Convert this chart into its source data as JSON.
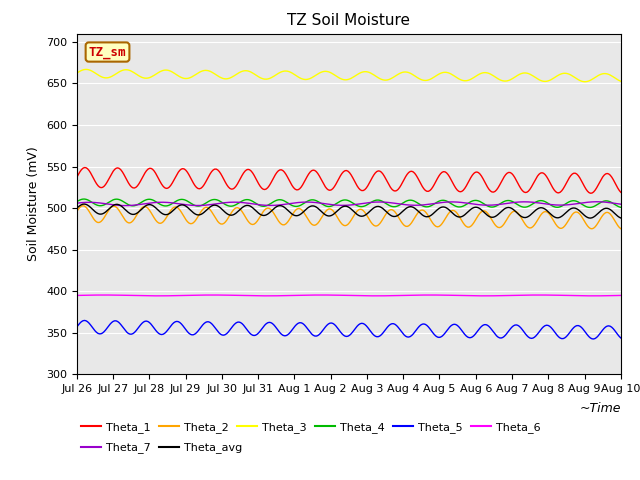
{
  "title": "TZ Soil Moisture",
  "ylabel": "Soil Moisture (mV)",
  "xlabel": "~Time",
  "ylim": [
    300,
    710
  ],
  "bg_color": "#e8e8e8",
  "tz_sm_label": "TZ_sm",
  "xtick_labels": [
    "Jul 26",
    "Jul 27",
    "Jul 28",
    "Jul 29",
    "Jul 30",
    "Jul 31",
    "Aug 1",
    "Aug 2",
    "Aug 3",
    "Aug 4",
    "Aug 5",
    "Aug 6",
    "Aug 7",
    "Aug 8",
    "Aug 9",
    "Aug 10"
  ],
  "series_order": [
    "Theta_1",
    "Theta_2",
    "Theta_3",
    "Theta_4",
    "Theta_5",
    "Theta_6",
    "Theta_7",
    "Theta_avg"
  ],
  "series": {
    "Theta_1": {
      "color": "#ff0000",
      "base": 537,
      "amp": 12,
      "period": 0.9,
      "trend": -0.5,
      "phase": 0.0
    },
    "Theta_2": {
      "color": "#ffa500",
      "base": 493,
      "amp": 10,
      "period": 0.85,
      "trend": -0.55,
      "phase": 0.3
    },
    "Theta_3": {
      "color": "#ffff00",
      "base": 662,
      "amp": 5,
      "period": 1.1,
      "trend": -0.35,
      "phase": 0.1
    },
    "Theta_4": {
      "color": "#00bb00",
      "base": 507,
      "amp": 4,
      "period": 0.9,
      "trend": -0.15,
      "phase": 0.2
    },
    "Theta_5": {
      "color": "#0000ff",
      "base": 357,
      "amp": 8,
      "period": 0.85,
      "trend": -0.45,
      "phase": 0.0
    },
    "Theta_6": {
      "color": "#ff00ff",
      "base": 395,
      "amp": 0.5,
      "period": 3.0,
      "trend": 0.0,
      "phase": 0.0
    },
    "Theta_7": {
      "color": "#9900cc",
      "base": 505,
      "amp": 2,
      "period": 2.0,
      "trend": 0.05,
      "phase": 0.5
    },
    "Theta_avg": {
      "color": "#000000",
      "base": 499,
      "amp": 6,
      "period": 0.9,
      "trend": -0.35,
      "phase": 0.15
    }
  },
  "n_points": 360,
  "title_fontsize": 11,
  "axis_label_fontsize": 9,
  "tick_fontsize": 8,
  "legend_fontsize": 8,
  "legend_row1": [
    "Theta_1",
    "Theta_2",
    "Theta_3",
    "Theta_4",
    "Theta_5",
    "Theta_6"
  ],
  "legend_row2": [
    "Theta_7",
    "Theta_avg"
  ]
}
